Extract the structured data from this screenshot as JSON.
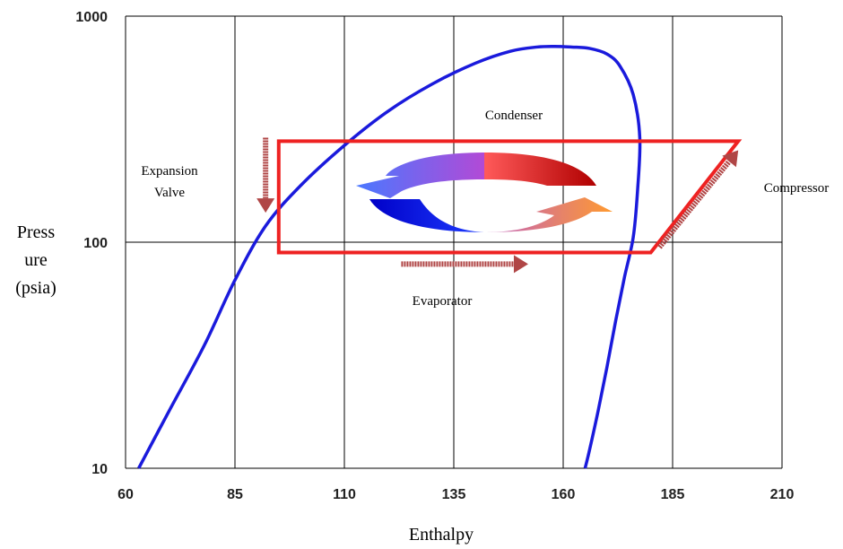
{
  "chart_data": {
    "type": "line",
    "title": "",
    "xlabel": "Enthalpy",
    "ylabel_lines": [
      "Press",
      "ure",
      "(psia)"
    ],
    "x_ticks": [
      "60",
      "85",
      "110",
      "135",
      "160",
      "185",
      "210"
    ],
    "y_ticks": [
      "10",
      "100",
      "1000"
    ],
    "xlim": [
      60,
      210
    ],
    "ylim": [
      10,
      1000
    ],
    "y_scale": "log",
    "grid": true,
    "series": [
      {
        "kind": "saturation-dome",
        "x": [
          63,
          70,
          78,
          85,
          92,
          100,
          110,
          120,
          130,
          140,
          148,
          154,
          158,
          162,
          166,
          170,
          173,
          176,
          177.5,
          177,
          176,
          174,
          172,
          170,
          168,
          166,
          165
        ],
        "y": [
          10,
          18,
          35,
          68,
          118,
          178,
          268,
          380,
          500,
          620,
          700,
          730,
          735,
          730,
          720,
          680,
          600,
          450,
          290,
          170,
          105,
          70,
          45,
          28,
          18,
          12,
          10
        ],
        "color": "#1a1adc"
      },
      {
        "kind": "refrigeration-cycle",
        "x": [
          95,
          95,
          200,
          180,
          95
        ],
        "y": [
          90,
          280,
          280,
          90,
          90
        ],
        "color": "#ee2222"
      }
    ],
    "annotations": [
      {
        "id": "condenser",
        "text": "Condenser",
        "x": 136,
        "y": 330
      },
      {
        "id": "expansion",
        "text": [
          "Expansion",
          "Valve"
        ],
        "x": 77,
        "y": 220
      },
      {
        "id": "compressor",
        "text": "Compressor",
        "x": 217,
        "y": 210
      },
      {
        "id": "evaporator",
        "text": "Evaporator",
        "x": 136,
        "y": 65
      }
    ],
    "flow_arrows": [
      {
        "name": "expansion",
        "x": [
          92,
          92
        ],
        "y": [
          290,
          135
        ]
      },
      {
        "name": "evaporator",
        "x": [
          123,
          152
        ],
        "y": [
          80,
          80
        ]
      },
      {
        "name": "compressor",
        "x": [
          182,
          200
        ],
        "y": [
          95,
          255
        ]
      }
    ],
    "colors": {
      "grid": "#000000",
      "cycle": "#ee2222",
      "dome": "#1a1adc",
      "arrows": "#b04646"
    }
  }
}
